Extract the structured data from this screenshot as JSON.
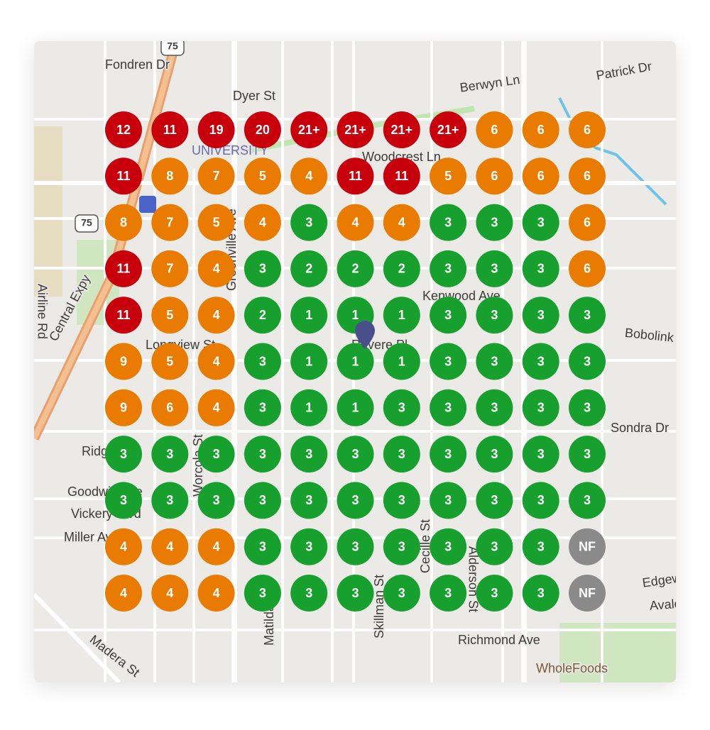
{
  "map": {
    "street_labels": [
      "Fondren Dr",
      "Dyer St",
      "Berwyn Ln",
      "Patrick Dr",
      "Woodcrest Ln",
      "UNIVERSITY",
      "Airline Rd",
      "Central Expy",
      "Longview St",
      "Greenville Ave",
      "Kenwood Ave",
      "Revere Pl",
      "Bobolink Dr",
      "Sondra Dr",
      "Ridgedale",
      "Goodwin Ave",
      "Vickery Blvd",
      "Miller Ave",
      "Alderson St",
      "Cecille St",
      "Skillman St",
      "Matilda St",
      "Richmond Ave",
      "WholeFoods",
      "Madera St",
      "Avalon Ave",
      "Edgewood Blvd",
      "Worcola St",
      "75",
      "75"
    ],
    "grid": [
      [
        "12",
        "11",
        "19",
        "20",
        "21+",
        "21+",
        "21+",
        "21+",
        "6",
        "6",
        "6"
      ],
      [
        "11",
        "8",
        "7",
        "5",
        "4",
        "11",
        "11",
        "5",
        "6",
        "6",
        "6"
      ],
      [
        "8",
        "7",
        "5",
        "4",
        "3",
        "4",
        "4",
        "3",
        "3",
        "3",
        "6"
      ],
      [
        "11",
        "7",
        "4",
        "3",
        "2",
        "2",
        "2",
        "3",
        "3",
        "3",
        "6"
      ],
      [
        "11",
        "5",
        "4",
        "2",
        "1",
        "1",
        "1",
        "3",
        "3",
        "3",
        "3"
      ],
      [
        "9",
        "5",
        "4",
        "3",
        "1",
        "1",
        "1",
        "3",
        "3",
        "3",
        "3"
      ],
      [
        "9",
        "6",
        "4",
        "3",
        "1",
        "1",
        "3",
        "3",
        "3",
        "3",
        "3"
      ],
      [
        "3",
        "3",
        "3",
        "3",
        "3",
        "3",
        "3",
        "3",
        "3",
        "3",
        "3"
      ],
      [
        "3",
        "3",
        "3",
        "3",
        "3",
        "3",
        "3",
        "3",
        "3",
        "3",
        "3"
      ],
      [
        "4",
        "4",
        "4",
        "3",
        "3",
        "3",
        "3",
        "3",
        "3",
        "3",
        "NF"
      ],
      [
        "4",
        "4",
        "4",
        "3",
        "3",
        "3",
        "3",
        "3",
        "3",
        "3",
        "NF"
      ]
    ],
    "grid_colors": [
      [
        "#c8000c",
        "#c8000c",
        "#c8000c",
        "#c8000c",
        "#c8000c",
        "#c8000c",
        "#c8000c",
        "#c8000c",
        "#e87b00",
        "#e87b00",
        "#e87b00"
      ],
      [
        "#c8000c",
        "#e87b00",
        "#e87b00",
        "#e87b00",
        "#e87b00",
        "#c8000c",
        "#c8000c",
        "#e87b00",
        "#e87b00",
        "#e87b00",
        "#e87b00"
      ],
      [
        "#e87b00",
        "#e87b00",
        "#e87b00",
        "#e87b00",
        "#17a02e",
        "#e87b00",
        "#e87b00",
        "#17a02e",
        "#17a02e",
        "#17a02e",
        "#e87b00"
      ],
      [
        "#c8000c",
        "#e87b00",
        "#e87b00",
        "#17a02e",
        "#17a02e",
        "#17a02e",
        "#17a02e",
        "#17a02e",
        "#17a02e",
        "#17a02e",
        "#e87b00"
      ],
      [
        "#c8000c",
        "#e87b00",
        "#e87b00",
        "#17a02e",
        "#17a02e",
        "#17a02e",
        "#17a02e",
        "#17a02e",
        "#17a02e",
        "#17a02e",
        "#17a02e"
      ],
      [
        "#e87b00",
        "#e87b00",
        "#e87b00",
        "#17a02e",
        "#17a02e",
        "#17a02e",
        "#17a02e",
        "#17a02e",
        "#17a02e",
        "#17a02e",
        "#17a02e"
      ],
      [
        "#e87b00",
        "#e87b00",
        "#e87b00",
        "#17a02e",
        "#17a02e",
        "#17a02e",
        "#17a02e",
        "#17a02e",
        "#17a02e",
        "#17a02e",
        "#17a02e"
      ],
      [
        "#17a02e",
        "#17a02e",
        "#17a02e",
        "#17a02e",
        "#17a02e",
        "#17a02e",
        "#17a02e",
        "#17a02e",
        "#17a02e",
        "#17a02e",
        "#17a02e"
      ],
      [
        "#17a02e",
        "#17a02e",
        "#17a02e",
        "#17a02e",
        "#17a02e",
        "#17a02e",
        "#17a02e",
        "#17a02e",
        "#17a02e",
        "#17a02e",
        "#17a02e"
      ],
      [
        "#e87b00",
        "#e87b00",
        "#e87b00",
        "#17a02e",
        "#17a02e",
        "#17a02e",
        "#17a02e",
        "#17a02e",
        "#17a02e",
        "#17a02e",
        "#8a8a8a"
      ],
      [
        "#e87b00",
        "#e87b00",
        "#e87b00",
        "#17a02e",
        "#17a02e",
        "#17a02e",
        "#17a02e",
        "#17a02e",
        "#17a02e",
        "#17a02e",
        "#8a8a8a"
      ]
    ]
  }
}
